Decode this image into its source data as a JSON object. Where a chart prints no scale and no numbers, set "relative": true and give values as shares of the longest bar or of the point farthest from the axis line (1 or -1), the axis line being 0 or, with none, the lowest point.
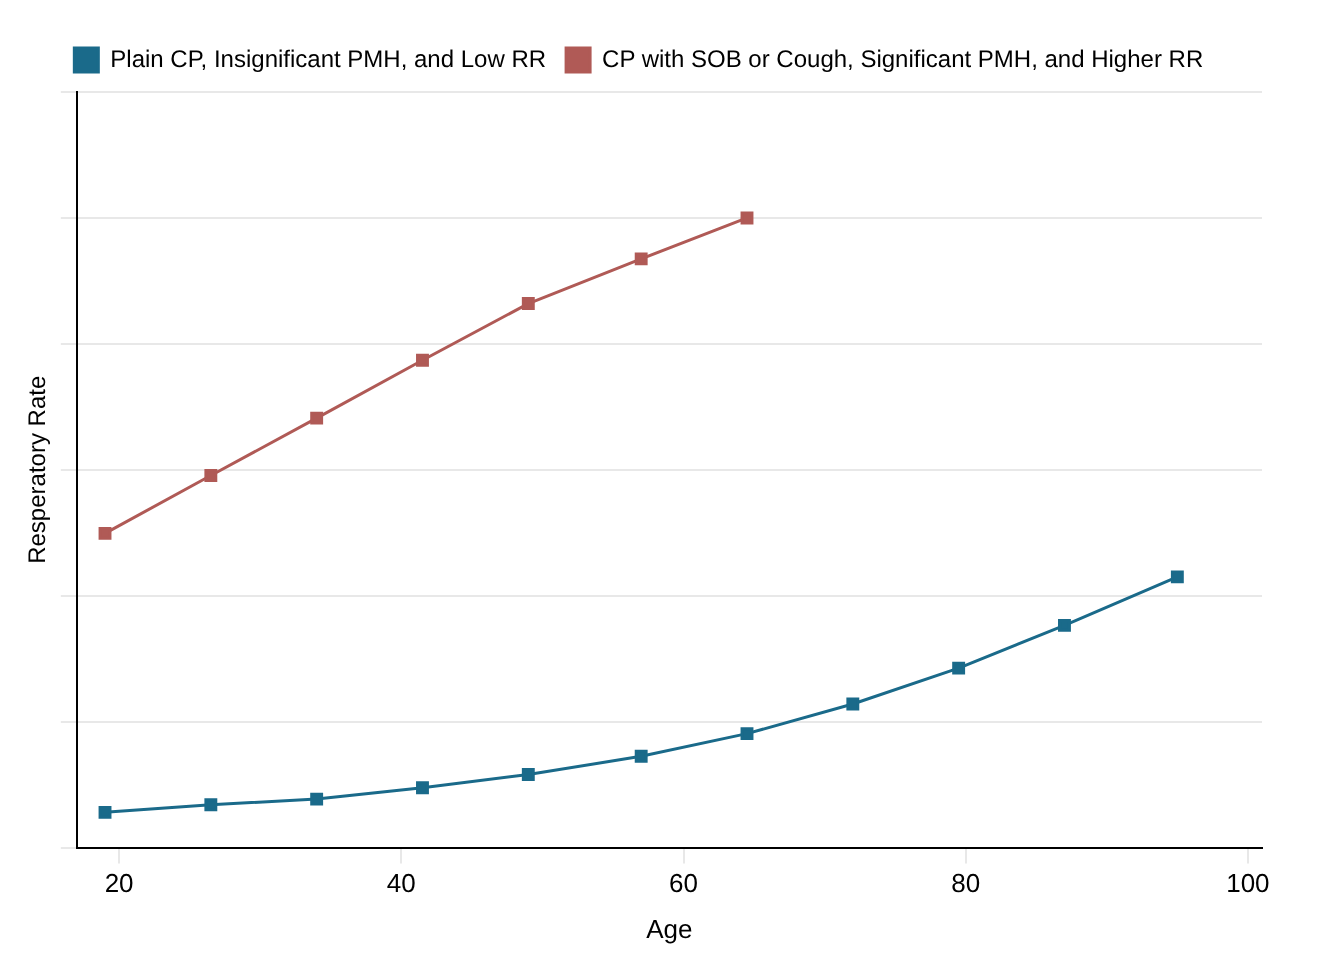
{
  "chart_data": {
    "type": "line",
    "xlabel": "Age",
    "ylabel": "Resperatory Rate",
    "relative": true,
    "x": [
      19,
      26.5,
      34,
      41.5,
      49,
      57,
      64.5,
      72,
      79.5,
      87,
      95
    ],
    "series": [
      {
        "name": "Plain CP, Insignificant PMH, and Low RR",
        "color": "#1a6a8a",
        "values": [
          0.056,
          0.068,
          0.077,
          0.095,
          0.116,
          0.145,
          0.181,
          0.228,
          0.285,
          0.353,
          0.43
        ]
      },
      {
        "name": "CP with SOB or Cough, Significant PMH, and Higher RR",
        "color": "#b05a56",
        "values": [
          0.499,
          0.591,
          0.682,
          0.774,
          0.864,
          0.935,
          1.0,
          null,
          null,
          null,
          null
        ]
      }
    ],
    "xlim": [
      17,
      101
    ],
    "xticks": [
      20,
      40,
      60,
      80,
      100
    ],
    "grid": "y",
    "legend": "top",
    "marker": "square",
    "line_style": "solid"
  }
}
